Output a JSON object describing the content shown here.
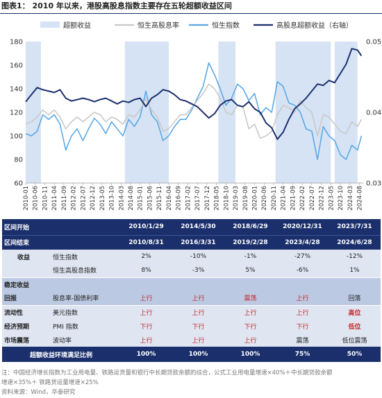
{
  "title": "图表1：  2010 年以来，港股高股息指数主要存在五轮超额收益区间",
  "chart_data": {
    "type": "line",
    "legend": [
      "超额收益",
      "恒生高股息率",
      "恒生指数",
      "高股息超额收益（右轴）"
    ],
    "x_labels": [
      "2010-01",
      "2010-06",
      "2010-11",
      "2011-04",
      "2011-09",
      "2012-02",
      "2012-07",
      "2012-12",
      "2013-05",
      "2013-10",
      "2014-03",
      "2014-08",
      "2015-01",
      "2015-06",
      "2015-11",
      "2016-04",
      "2016-09",
      "2017-02",
      "2017-07",
      "2017-12",
      "2018-05",
      "2018-10",
      "2019-03",
      "2019-08",
      "2020-01",
      "2020-06",
      "2020-11",
      "2021-04",
      "2021-09",
      "2022-02",
      "2022-07",
      "2022-12",
      "2023-05",
      "2023-10",
      "2024-03",
      "2024-08"
    ],
    "y_left": {
      "min": 60,
      "max": 180,
      "ticks": [
        60,
        80,
        100,
        120,
        140,
        160,
        180
      ]
    },
    "y_right": {
      "min": 0.03,
      "max": 0.05,
      "ticks": [
        "0.03",
        "0.04",
        "0.05"
      ]
    },
    "shaded_ranges": [
      [
        "2010-01",
        "2010-08"
      ],
      [
        "2014-05",
        "2016-03"
      ],
      [
        "2018-06",
        "2019-02"
      ],
      [
        "2020-12",
        "2023-04"
      ],
      [
        "2023-07",
        "2024-06"
      ]
    ],
    "series": [
      {
        "name": "恒生指数",
        "color": "#5aa9e6",
        "width": 1.6,
        "axis": "left",
        "x": [
          "2010-01",
          "2010-04",
          "2010-07",
          "2010-10",
          "2011-01",
          "2011-04",
          "2011-07",
          "2011-10",
          "2012-01",
          "2012-04",
          "2012-07",
          "2012-10",
          "2013-01",
          "2013-04",
          "2013-07",
          "2013-10",
          "2014-01",
          "2014-04",
          "2014-07",
          "2014-10",
          "2015-01",
          "2015-04",
          "2015-07",
          "2015-10",
          "2016-01",
          "2016-04",
          "2016-07",
          "2016-10",
          "2017-01",
          "2017-04",
          "2017-07",
          "2017-10",
          "2018-01",
          "2018-04",
          "2018-07",
          "2018-10",
          "2019-01",
          "2019-04",
          "2019-07",
          "2019-10",
          "2020-01",
          "2020-04",
          "2020-07",
          "2020-10",
          "2021-01",
          "2021-04",
          "2021-07",
          "2021-10",
          "2022-01",
          "2022-04",
          "2022-07",
          "2022-10",
          "2023-01",
          "2023-04",
          "2023-07",
          "2023-10",
          "2024-01",
          "2024-04",
          "2024-07",
          "2024-09"
        ],
        "y": [
          102,
          100,
          104,
          118,
          114,
          118,
          110,
          88,
          100,
          106,
          96,
          106,
          115,
          110,
          102,
          112,
          106,
          100,
          114,
          108,
          116,
          138,
          118,
          112,
          96,
          100,
          108,
          114,
          114,
          122,
          132,
          142,
          162,
          152,
          140,
          126,
          132,
          144,
          140,
          130,
          136,
          118,
          124,
          120,
          146,
          142,
          128,
          126,
          120,
          106,
          104,
          80,
          108,
          100,
          96,
          84,
          80,
          92,
          88,
          100
        ]
      },
      {
        "name": "恒生高股息率",
        "color": "#c9c9c9",
        "width": 1.6,
        "axis": "left",
        "x": [
          "2010-01",
          "2010-04",
          "2010-07",
          "2010-10",
          "2011-01",
          "2011-04",
          "2011-07",
          "2011-10",
          "2012-01",
          "2012-04",
          "2012-07",
          "2012-10",
          "2013-01",
          "2013-04",
          "2013-07",
          "2013-10",
          "2014-01",
          "2014-04",
          "2014-07",
          "2014-10",
          "2015-01",
          "2015-04",
          "2015-07",
          "2015-10",
          "2016-01",
          "2016-04",
          "2016-07",
          "2016-10",
          "2017-01",
          "2017-04",
          "2017-07",
          "2017-10",
          "2018-01",
          "2018-04",
          "2018-07",
          "2018-10",
          "2019-01",
          "2019-04",
          "2019-07",
          "2019-10",
          "2020-01",
          "2020-04",
          "2020-07",
          "2020-10",
          "2021-01",
          "2021-04",
          "2021-07",
          "2021-10",
          "2022-01",
          "2022-04",
          "2022-07",
          "2022-10",
          "2023-01",
          "2023-04",
          "2023-07",
          "2023-10",
          "2024-01",
          "2024-04",
          "2024-07",
          "2024-09"
        ],
        "y": [
          110,
          112,
          116,
          122,
          118,
          122,
          116,
          106,
          112,
          116,
          112,
          116,
          120,
          118,
          112,
          116,
          114,
          110,
          118,
          116,
          122,
          132,
          122,
          116,
          104,
          106,
          112,
          118,
          118,
          124,
          130,
          136,
          144,
          140,
          132,
          120,
          118,
          126,
          124,
          106,
          110,
          98,
          100,
          104,
          118,
          126,
          124,
          120,
          130,
          124,
          120,
          100,
          118,
          116,
          110,
          104,
          102,
          112,
          108,
          114
        ]
      },
      {
        "name": "高股息超额收益（右轴）",
        "color": "#1c2f6e",
        "width": 2,
        "axis": "right",
        "x": [
          "2010-01",
          "2010-04",
          "2010-07",
          "2010-10",
          "2011-01",
          "2011-04",
          "2011-07",
          "2011-10",
          "2012-01",
          "2012-04",
          "2012-07",
          "2012-10",
          "2013-01",
          "2013-04",
          "2013-07",
          "2013-10",
          "2014-01",
          "2014-04",
          "2014-07",
          "2014-10",
          "2015-01",
          "2015-04",
          "2015-07",
          "2015-10",
          "2016-01",
          "2016-04",
          "2016-07",
          "2016-10",
          "2017-01",
          "2017-04",
          "2017-07",
          "2017-10",
          "2018-01",
          "2018-04",
          "2018-07",
          "2018-10",
          "2019-01",
          "2019-04",
          "2019-07",
          "2019-10",
          "2020-01",
          "2020-04",
          "2020-07",
          "2020-10",
          "2021-01",
          "2021-04",
          "2021-07",
          "2021-10",
          "2022-01",
          "2022-04",
          "2022-07",
          "2022-10",
          "2023-01",
          "2023-04",
          "2023-07",
          "2023-10",
          "2024-01",
          "2024-04",
          "2024-07",
          "2024-09"
        ],
        "y": [
          0.0415,
          0.0425,
          0.0435,
          0.0432,
          0.043,
          0.0428,
          0.0432,
          0.042,
          0.0416,
          0.0418,
          0.042,
          0.0418,
          0.0415,
          0.0418,
          0.042,
          0.0416,
          0.0412,
          0.0416,
          0.0414,
          0.0418,
          0.042,
          0.0408,
          0.042,
          0.0425,
          0.0432,
          0.043,
          0.0425,
          0.0418,
          0.0416,
          0.0412,
          0.0408,
          0.04,
          0.0392,
          0.0398,
          0.041,
          0.0416,
          0.0418,
          0.041,
          0.0408,
          0.0415,
          0.0405,
          0.04,
          0.0385,
          0.0378,
          0.0362,
          0.0372,
          0.039,
          0.0405,
          0.0412,
          0.042,
          0.043,
          0.044,
          0.0438,
          0.0445,
          0.0442,
          0.0455,
          0.0468,
          0.049,
          0.0488,
          0.048
        ]
      }
    ]
  },
  "table": {
    "header1": {
      "label": "区间开始",
      "values": [
        "2010/1/29",
        "2014/5/30",
        "2018/6/29",
        "2020/12/31",
        "2023/7/31"
      ]
    },
    "header2": {
      "label": "区间结束",
      "values": [
        "2010/8/31",
        "2016/3/31",
        "2019/2/28",
        "2023/4/28",
        "2024/6/28"
      ]
    },
    "rows": [
      {
        "cat": "收益",
        "sub": "恒生指数",
        "values": [
          "2%",
          "-10%",
          "-1%",
          "-27%",
          "-12%"
        ],
        "red": [
          false,
          false,
          false,
          false,
          false
        ],
        "bold": [
          false,
          false,
          false,
          false,
          false
        ]
      },
      {
        "cat": "",
        "sub": "恒生高股息指数",
        "values": [
          "8%",
          "-3%",
          "5%",
          "-6%",
          "1%"
        ],
        "red": [
          false,
          false,
          false,
          false,
          false
        ],
        "bold": [
          false,
          false,
          false,
          false,
          false
        ]
      },
      {
        "cat": "稳定收益",
        "sub": "",
        "values": [
          "",
          "",
          "",
          "",
          ""
        ],
        "red": [
          false,
          false,
          false,
          false,
          false
        ],
        "bold": [
          false,
          false,
          false,
          false,
          false
        ]
      },
      {
        "cat": "回报",
        "sub": "股息率-国债利率",
        "values": [
          "上行",
          "上行",
          "震荡",
          "上行",
          "回落"
        ],
        "red": [
          true,
          true,
          true,
          true,
          false
        ],
        "bold": [
          false,
          false,
          false,
          false,
          false
        ]
      },
      {
        "cat": "流动性",
        "sub": "美元指数",
        "values": [
          "上行",
          "上行",
          "上行",
          "上行",
          "高位"
        ],
        "red": [
          true,
          true,
          true,
          true,
          true
        ],
        "bold": [
          false,
          false,
          false,
          false,
          true
        ]
      },
      {
        "cat": "经济预期",
        "sub": "PMI 指数",
        "values": [
          "下行",
          "下行",
          "下行",
          "下行",
          "低位"
        ],
        "red": [
          true,
          true,
          true,
          true,
          true
        ],
        "bold": [
          false,
          false,
          false,
          false,
          true
        ]
      },
      {
        "cat": "市场震荡",
        "sub": "波动率",
        "values": [
          "上行",
          "上行",
          "上行",
          "震荡",
          "低位震荡"
        ],
        "red": [
          true,
          true,
          true,
          false,
          false
        ],
        "bold": [
          false,
          false,
          false,
          false,
          false
        ]
      }
    ],
    "footer": {
      "label": "超额收益环境满足比例",
      "values": [
        "100%",
        "100%",
        "100%",
        "75%",
        "50%"
      ]
    }
  },
  "note1": "注：中国经济增长指数为工业用电量、铁路运货量和银行中长期贷款余额的综合，公式工业用电量增速×40%＋中长期贷款余额",
  "note2": "增速×35%＋ 铁路货运量增速×25%",
  "source": "资料来源：Wind，华泰研究"
}
